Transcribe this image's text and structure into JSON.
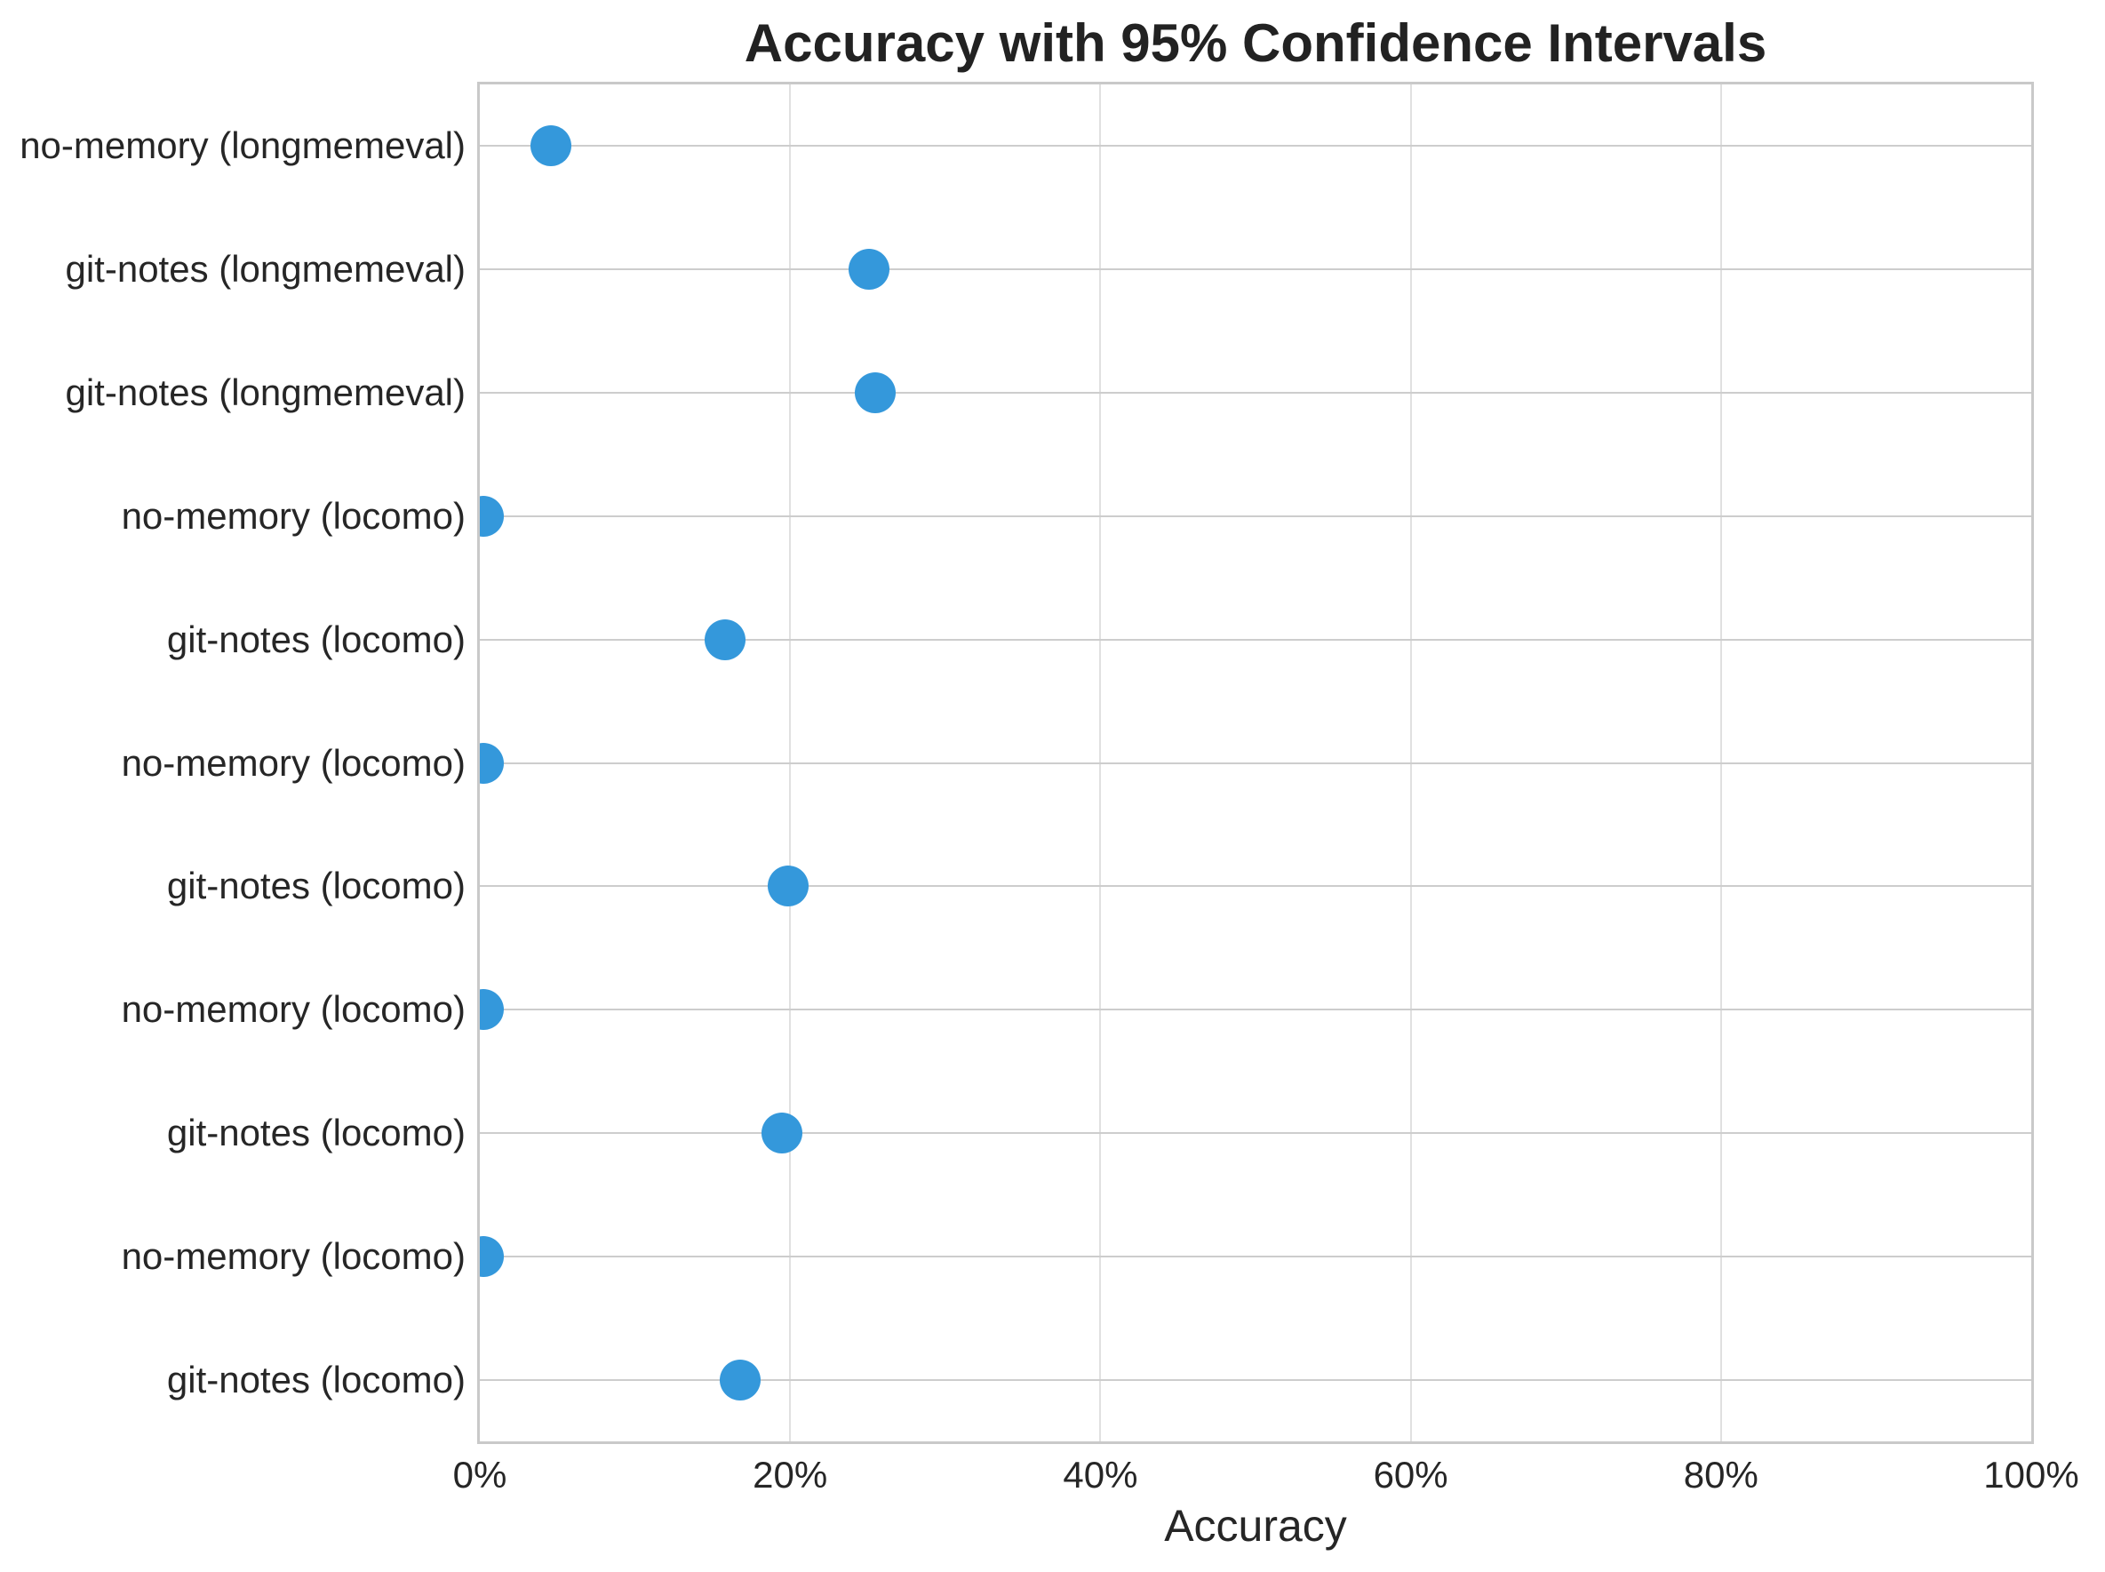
{
  "chart_data": {
    "type": "scatter",
    "title": "Accuracy with 95% Confidence Intervals",
    "xlabel": "Accuracy",
    "categories": [
      "no-memory (longmemeval)",
      "git-notes (longmemeval)",
      "git-notes (longmemeval)",
      "no-memory (locomo)",
      "git-notes (locomo)",
      "no-memory (locomo)",
      "git-notes (locomo)",
      "no-memory (locomo)",
      "git-notes (locomo)",
      "no-memory (locomo)",
      "git-notes (locomo)"
    ],
    "values": [
      4.6,
      25.1,
      25.5,
      0.2,
      15.8,
      0.2,
      19.9,
      0.2,
      19.5,
      0.2,
      16.8
    ],
    "units": "%",
    "xlim": [
      0,
      100
    ],
    "x_tick_values": [
      0,
      20,
      40,
      60,
      80,
      100
    ],
    "x_tick_labels": [
      "0%",
      "20%",
      "40%",
      "60%",
      "80%",
      "100%"
    ],
    "grid": "on",
    "legend": "none",
    "marker_color": "#3498db"
  }
}
